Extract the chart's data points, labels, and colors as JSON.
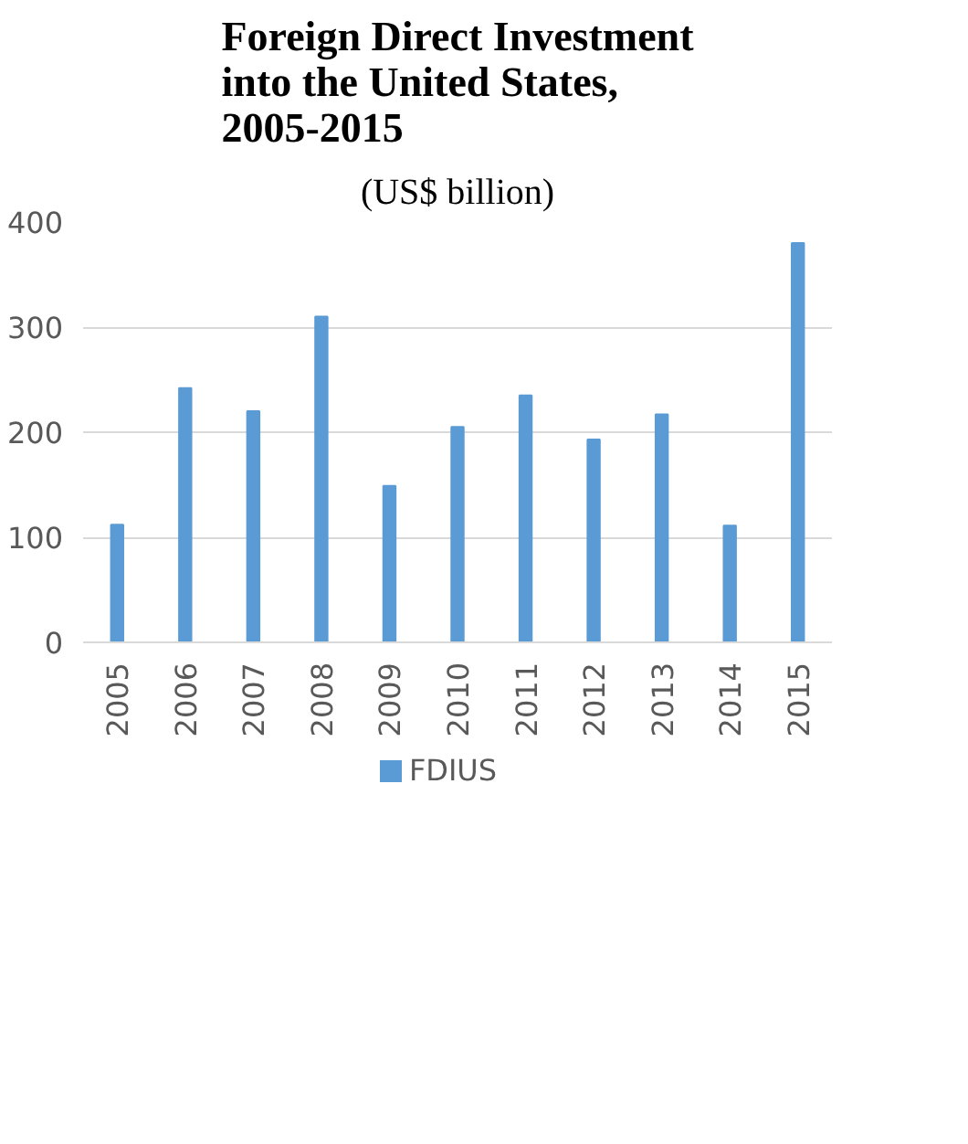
{
  "chart_data": {
    "type": "bar",
    "title": "Foreign Direct Investment into the United States, 2005-2015",
    "subtitle": "(US$ billion)",
    "categories": [
      "2005",
      "2006",
      "2007",
      "2008",
      "2009",
      "2010",
      "2011",
      "2012",
      "2013",
      "2014",
      "2015"
    ],
    "series": [
      {
        "name": "FDIUS",
        "color": "#5b9bd5",
        "values": [
          112,
          242,
          220,
          310,
          149,
          205,
          235,
          193,
          217,
          111,
          380
        ]
      }
    ],
    "ylim": [
      0,
      400
    ],
    "yticks": [
      0,
      100,
      200,
      300,
      400
    ],
    "grid": "y",
    "legend": "bottom"
  }
}
